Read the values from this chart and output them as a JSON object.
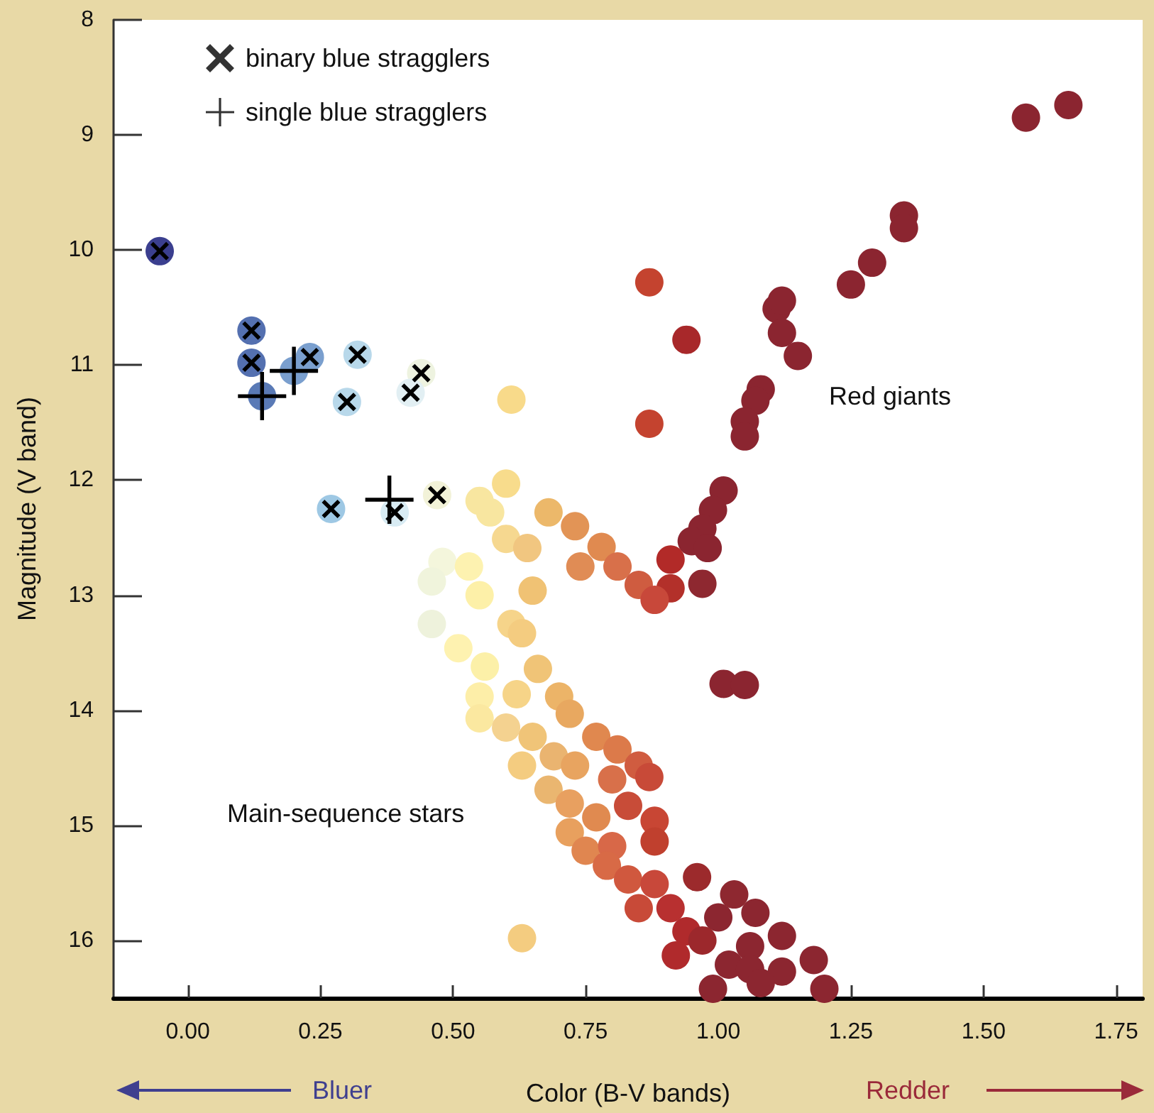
{
  "chart_data": {
    "type": "scatter",
    "xlabel": "Color (B-V bands)",
    "ylabel": "Magnitude (V band)",
    "xlim": [
      -0.14,
      1.8
    ],
    "ylim": [
      16.5,
      8
    ],
    "xticks": [
      {
        "value": 0,
        "label": "0.00"
      },
      {
        "value": 0.25,
        "label": "0.25"
      },
      {
        "value": 0.5,
        "label": "0.50"
      },
      {
        "value": 0.75,
        "label": "0.75"
      },
      {
        "value": 1,
        "label": "1.00"
      },
      {
        "value": 1.25,
        "label": "1.25"
      },
      {
        "value": 1.5,
        "label": "1.50"
      },
      {
        "value": 1.75,
        "label": "1.75"
      }
    ],
    "yticks": [
      8,
      9,
      10,
      11,
      12,
      13,
      14,
      15,
      16
    ],
    "grid": false,
    "legend": "top left",
    "annotations": [
      "Red giants",
      "Main-sequence stars",
      "Bluer",
      "Redder"
    ],
    "series": [
      {
        "marker": "circle",
        "x": [
          -0.053,
          0.12,
          0.12,
          0.14,
          0.2,
          0.23,
          0.32,
          0.3,
          0.44,
          0.42,
          0.27,
          0.39,
          0.47,
          0.61,
          0.87,
          0.94,
          0.87,
          1.58,
          1.66,
          1.35,
          1.35,
          1.29,
          1.25,
          1.11,
          1.12,
          1.12,
          1.15,
          1.08,
          1.07,
          1.05,
          1.05,
          1.01,
          0.99,
          0.97,
          0.95,
          0.98,
          0.91,
          0.97,
          0.91,
          1.01,
          1.05,
          0.68,
          0.73,
          0.78,
          0.74,
          0.81,
          0.85,
          0.88,
          0.6,
          0.55,
          0.57,
          0.48,
          0.46,
          0.46,
          0.53,
          0.6,
          0.64,
          0.65,
          0.55,
          0.61,
          0.63,
          0.51,
          0.56,
          0.66,
          0.55,
          0.62,
          0.7,
          0.55,
          0.72,
          0.6,
          0.65,
          0.77,
          0.81,
          0.63,
          0.69,
          0.73,
          0.85,
          0.8,
          0.87,
          0.68,
          0.83,
          0.72,
          0.88,
          0.88,
          0.72,
          0.77,
          0.75,
          0.8,
          0.79,
          0.83,
          0.88,
          0.85,
          0.91,
          0.96,
          1.03,
          1.07,
          1.0,
          0.94,
          0.92,
          0.97,
          1.02,
          1.06,
          1.12,
          1.06,
          1.12,
          1.18,
          0.99,
          1.08,
          1.2,
          0.63
        ],
        "values": [
          10.01,
          10.7,
          10.98,
          11.27,
          11.05,
          10.93,
          10.91,
          11.32,
          11.07,
          11.24,
          12.25,
          12.28,
          12.13,
          11.3,
          10.28,
          10.78,
          11.51,
          8.85,
          8.74,
          9.7,
          9.81,
          10.11,
          10.3,
          10.51,
          10.44,
          10.72,
          10.92,
          11.21,
          11.31,
          11.49,
          11.62,
          12.09,
          12.26,
          12.42,
          12.53,
          12.59,
          12.69,
          12.9,
          12.94,
          13.77,
          13.78,
          12.28,
          12.4,
          12.58,
          12.75,
          12.75,
          12.91,
          13.04,
          12.03,
          12.18,
          12.28,
          12.71,
          12.88,
          13.25,
          12.75,
          12.51,
          12.59,
          12.96,
          13.0,
          13.25,
          13.33,
          13.46,
          13.62,
          13.64,
          13.88,
          13.86,
          13.88,
          14.07,
          14.03,
          14.15,
          14.23,
          14.23,
          14.34,
          14.48,
          14.4,
          14.48,
          14.48,
          14.6,
          14.58,
          14.69,
          14.83,
          14.81,
          14.96,
          15.14,
          15.06,
          14.93,
          15.22,
          15.18,
          15.35,
          15.47,
          15.51,
          15.72,
          15.72,
          15.45,
          15.6,
          15.76,
          15.8,
          15.92,
          16.13,
          16.0,
          16.21,
          16.05,
          15.96,
          16.25,
          16.27,
          16.17,
          16.42,
          16.37,
          16.42,
          15.98
        ],
        "colors": [
          "#3b3f8f",
          "#5470b0",
          "#5470b0",
          "#5a7ab6",
          "#7a9fce",
          "#7a9fce",
          "#b8d8ea",
          "#b8d8ea",
          "#eef3e0",
          "#e2eff3",
          "#9ec8e4",
          "#d8ebf3",
          "#f2f2d8",
          "#f8da8a",
          "#c4432f",
          "#a8282a",
          "#c4432f",
          "#8b2530",
          "#8b2530",
          "#8b2530",
          "#8b2530",
          "#8b2530",
          "#8b2530",
          "#8b2530",
          "#8b2530",
          "#8b2530",
          "#8b2530",
          "#8b2530",
          "#8b2530",
          "#8b2530",
          "#8b2530",
          "#8b2530",
          "#8b2530",
          "#8b2530",
          "#8b2530",
          "#8b2530",
          "#b22a28",
          "#8e2830",
          "#b3302a",
          "#8b2530",
          "#8b2530",
          "#ecb86a",
          "#e29456",
          "#e08a50",
          "#e08c55",
          "#d8704a",
          "#cf5c40",
          "#c8483a",
          "#f8dc8c",
          "#f8e6a0",
          "#f8e6a0",
          "#f4f6dc",
          "#f0f4dc",
          "#eef2dc",
          "#fdf2b0",
          "#f6d890",
          "#f1c680",
          "#f0c274",
          "#fdf0a8",
          "#f6d48a",
          "#f4cc80",
          "#fef2b0",
          "#fcf0a8",
          "#f0c477",
          "#fdeea8",
          "#f6d488",
          "#ecb468",
          "#fbe8a0",
          "#e8a860",
          "#f4d290",
          "#f0c478",
          "#e0884f",
          "#dc7a4a",
          "#f4cc80",
          "#eab470",
          "#e8a460",
          "#d05c40",
          "#d8704a",
          "#c84a38",
          "#eab670",
          "#c84c38",
          "#e8a060",
          "#c84634",
          "#c0402e",
          "#e8a05e",
          "#e08a50",
          "#e08650",
          "#d86848",
          "#d86a46",
          "#d0583e",
          "#c8483a",
          "#c84a38",
          "#b83030",
          "#9c2a2c",
          "#8e2830",
          "#8c2630",
          "#8c2630",
          "#b02a2c",
          "#b02a2c",
          "#9c282c",
          "#8c2630",
          "#8c2630",
          "#8c2630",
          "#8c2630",
          "#8c2630",
          "#8c2630",
          "#8c2630",
          "#8c2630",
          "#8c2630",
          "#f4cc80"
        ]
      },
      {
        "name": "binary blue stragglers",
        "color": "#000000",
        "marker": "x",
        "x": [
          -0.053,
          0.12,
          0.12,
          0.23,
          0.32,
          0.3,
          0.44,
          0.42,
          0.27,
          0.39,
          0.47
        ],
        "values": [
          10.01,
          10.7,
          10.98,
          10.93,
          10.91,
          11.32,
          11.07,
          11.24,
          12.25,
          12.28,
          12.13
        ]
      },
      {
        "name": "single blue stragglers",
        "color": "#000000",
        "marker": "cross",
        "x": [
          0.14,
          0.2,
          0.38
        ],
        "values": [
          11.27,
          11.05,
          12.17
        ]
      }
    ]
  }
}
